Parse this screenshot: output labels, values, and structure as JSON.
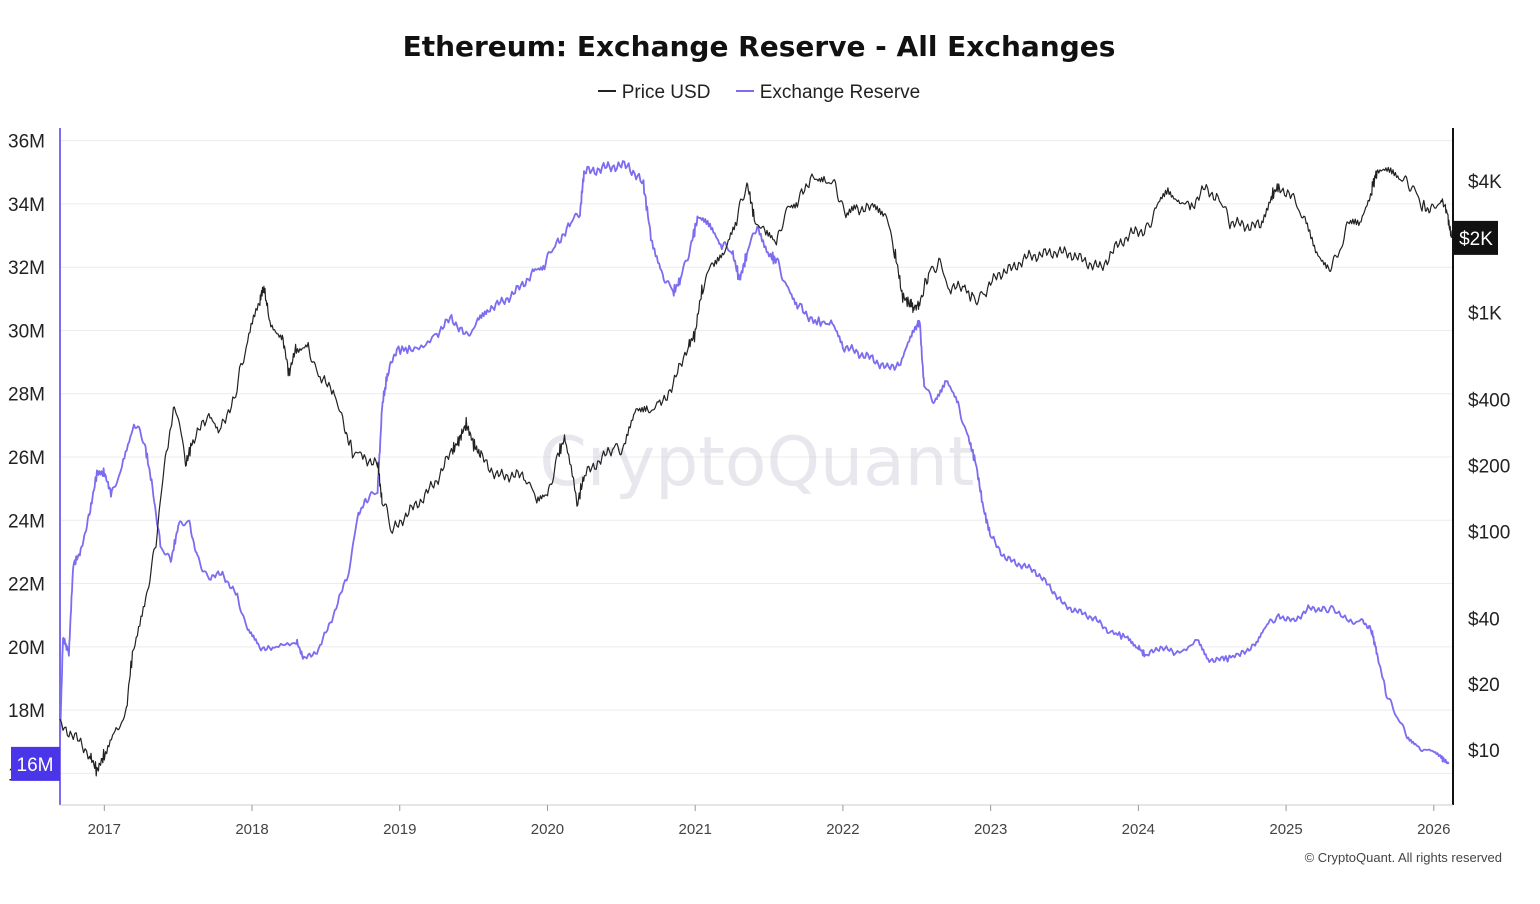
{
  "chart_data": {
    "type": "line",
    "title": "Ethereum: Exchange Reserve - All Exchanges",
    "legend": {
      "position": "top-center",
      "items": [
        {
          "label": "Price USD",
          "color": "#222222"
        },
        {
          "label": "Exchange Reserve",
          "color": "#7b6cf0"
        }
      ]
    },
    "x_ticks": [
      "2017",
      "2018",
      "2019",
      "2020",
      "2021",
      "2022",
      "2023",
      "2024",
      "2025",
      "2026"
    ],
    "x_range": [
      2016.7,
      2026.13
    ],
    "y_left": {
      "ticks": [
        "16M",
        "18M",
        "20M",
        "22M",
        "24M",
        "26M",
        "28M",
        "30M",
        "32M",
        "34M",
        "36M"
      ],
      "range": [
        15000000,
        36400000
      ]
    },
    "y_right": {
      "scale": "log",
      "ticks": [
        {
          "label": "$10",
          "value": 10
        },
        {
          "label": "$20",
          "value": 20
        },
        {
          "label": "$40",
          "value": 40
        },
        {
          "label": "$100",
          "value": 100
        },
        {
          "label": "$200",
          "value": 200
        },
        {
          "label": "$400",
          "value": 400
        },
        {
          "label": "$1K",
          "value": 1000
        },
        {
          "label": "$4K",
          "value": 4000
        }
      ],
      "range": [
        5.6,
        7000
      ]
    },
    "current_badges": {
      "left": "16M",
      "right": "$2K"
    },
    "grid": "horizontal",
    "watermark": "CryptoQuant",
    "series": [
      {
        "name": "Exchange Reserve",
        "axis": "left",
        "color": "#7b6cf0",
        "points": [
          [
            2016.7,
            17000000
          ],
          [
            2016.72,
            20300000
          ],
          [
            2016.76,
            19800000
          ],
          [
            2016.79,
            22600000
          ],
          [
            2016.84,
            23000000
          ],
          [
            2016.9,
            24200000
          ],
          [
            2016.95,
            25500000
          ],
          [
            2017.0,
            25500000
          ],
          [
            2017.05,
            24800000
          ],
          [
            2017.12,
            25700000
          ],
          [
            2017.2,
            27100000
          ],
          [
            2017.27,
            26500000
          ],
          [
            2017.32,
            25200000
          ],
          [
            2017.38,
            23200000
          ],
          [
            2017.45,
            22700000
          ],
          [
            2017.5,
            23800000
          ],
          [
            2017.57,
            24000000
          ],
          [
            2017.63,
            22800000
          ],
          [
            2017.7,
            22200000
          ],
          [
            2017.8,
            22300000
          ],
          [
            2017.9,
            21600000
          ],
          [
            2017.97,
            20500000
          ],
          [
            2018.05,
            20000000
          ],
          [
            2018.15,
            19900000
          ],
          [
            2018.3,
            20200000
          ],
          [
            2018.35,
            19600000
          ],
          [
            2018.45,
            19900000
          ],
          [
            2018.55,
            21000000
          ],
          [
            2018.65,
            22300000
          ],
          [
            2018.72,
            24200000
          ],
          [
            2018.78,
            24700000
          ],
          [
            2018.85,
            24900000
          ],
          [
            2018.88,
            27600000
          ],
          [
            2018.92,
            28700000
          ],
          [
            2018.98,
            29400000
          ],
          [
            2019.1,
            29400000
          ],
          [
            2019.25,
            29900000
          ],
          [
            2019.35,
            30400000
          ],
          [
            2019.45,
            29800000
          ],
          [
            2019.52,
            30200000
          ],
          [
            2019.6,
            30700000
          ],
          [
            2019.7,
            30900000
          ],
          [
            2019.8,
            31300000
          ],
          [
            2019.9,
            31800000
          ],
          [
            2019.98,
            32100000
          ],
          [
            2020.05,
            32700000
          ],
          [
            2020.15,
            33300000
          ],
          [
            2020.22,
            33800000
          ],
          [
            2020.25,
            35000000
          ],
          [
            2020.35,
            35100000
          ],
          [
            2020.45,
            35200000
          ],
          [
            2020.55,
            35200000
          ],
          [
            2020.65,
            34600000
          ],
          [
            2020.7,
            33000000
          ],
          [
            2020.78,
            31800000
          ],
          [
            2020.85,
            31200000
          ],
          [
            2020.9,
            31600000
          ],
          [
            2020.97,
            32700000
          ],
          [
            2021.02,
            33600000
          ],
          [
            2021.1,
            33200000
          ],
          [
            2021.18,
            32700000
          ],
          [
            2021.25,
            32500000
          ],
          [
            2021.3,
            31600000
          ],
          [
            2021.35,
            32400000
          ],
          [
            2021.42,
            33400000
          ],
          [
            2021.5,
            32400000
          ],
          [
            2021.55,
            32200000
          ],
          [
            2021.62,
            31400000
          ],
          [
            2021.7,
            30800000
          ],
          [
            2021.8,
            30300000
          ],
          [
            2021.92,
            30200000
          ],
          [
            2022.0,
            29500000
          ],
          [
            2022.1,
            29300000
          ],
          [
            2022.2,
            29100000
          ],
          [
            2022.3,
            28800000
          ],
          [
            2022.4,
            29000000
          ],
          [
            2022.48,
            30000000
          ],
          [
            2022.52,
            30300000
          ],
          [
            2022.55,
            28200000
          ],
          [
            2022.62,
            27800000
          ],
          [
            2022.7,
            28500000
          ],
          [
            2022.78,
            27600000
          ],
          [
            2022.85,
            26600000
          ],
          [
            2022.9,
            25800000
          ],
          [
            2022.95,
            24400000
          ],
          [
            2023.0,
            23500000
          ],
          [
            2023.1,
            22800000
          ],
          [
            2023.2,
            22600000
          ],
          [
            2023.3,
            22400000
          ],
          [
            2023.4,
            21900000
          ],
          [
            2023.5,
            21300000
          ],
          [
            2023.6,
            21100000
          ],
          [
            2023.7,
            20900000
          ],
          [
            2023.8,
            20500000
          ],
          [
            2023.92,
            20300000
          ],
          [
            2024.0,
            20000000
          ],
          [
            2024.05,
            19700000
          ],
          [
            2024.15,
            20000000
          ],
          [
            2024.25,
            19800000
          ],
          [
            2024.4,
            20200000
          ],
          [
            2024.48,
            19600000
          ],
          [
            2024.58,
            19600000
          ],
          [
            2024.7,
            19800000
          ],
          [
            2024.8,
            20100000
          ],
          [
            2024.88,
            20700000
          ],
          [
            2024.95,
            21000000
          ],
          [
            2025.05,
            20800000
          ],
          [
            2025.15,
            21200000
          ],
          [
            2025.25,
            21200000
          ],
          [
            2025.32,
            21200000
          ],
          [
            2025.45,
            20800000
          ],
          [
            2025.52,
            20800000
          ],
          [
            2025.58,
            20500000
          ],
          [
            2025.62,
            19700000
          ],
          [
            2025.68,
            18500000
          ],
          [
            2025.75,
            17800000
          ],
          [
            2025.82,
            17200000
          ],
          [
            2025.9,
            16800000
          ],
          [
            2025.97,
            16700000
          ],
          [
            2026.05,
            16500000
          ],
          [
            2026.1,
            16300000
          ]
        ]
      },
      {
        "name": "Price USD",
        "axis": "right",
        "color": "#222222",
        "points": [
          [
            2016.7,
            13
          ],
          [
            2016.8,
            11.5
          ],
          [
            2016.9,
            9.5
          ],
          [
            2016.95,
            8
          ],
          [
            2017.0,
            9.5
          ],
          [
            2017.08,
            12
          ],
          [
            2017.15,
            15
          ],
          [
            2017.2,
            30
          ],
          [
            2017.28,
            48
          ],
          [
            2017.35,
            85
          ],
          [
            2017.42,
            220
          ],
          [
            2017.48,
            380
          ],
          [
            2017.55,
            200
          ],
          [
            2017.6,
            260
          ],
          [
            2017.7,
            330
          ],
          [
            2017.78,
            290
          ],
          [
            2017.88,
            400
          ],
          [
            2017.97,
            720
          ],
          [
            2018.05,
            1100
          ],
          [
            2018.08,
            1300
          ],
          [
            2018.12,
            900
          ],
          [
            2018.2,
            800
          ],
          [
            2018.25,
            520
          ],
          [
            2018.3,
            700
          ],
          [
            2018.38,
            700
          ],
          [
            2018.45,
            500
          ],
          [
            2018.55,
            450
          ],
          [
            2018.62,
            300
          ],
          [
            2018.68,
            230
          ],
          [
            2018.75,
            220
          ],
          [
            2018.85,
            200
          ],
          [
            2018.88,
            140
          ],
          [
            2018.95,
            100
          ],
          [
            2019.05,
            120
          ],
          [
            2019.15,
            140
          ],
          [
            2019.25,
            170
          ],
          [
            2019.35,
            230
          ],
          [
            2019.4,
            260
          ],
          [
            2019.45,
            310
          ],
          [
            2019.5,
            250
          ],
          [
            2019.55,
            220
          ],
          [
            2019.65,
            180
          ],
          [
            2019.75,
            180
          ],
          [
            2019.85,
            180
          ],
          [
            2019.92,
            140
          ],
          [
            2020.0,
            140
          ],
          [
            2020.07,
            220
          ],
          [
            2020.12,
            270
          ],
          [
            2020.2,
            130
          ],
          [
            2020.25,
            180
          ],
          [
            2020.35,
            210
          ],
          [
            2020.45,
            240
          ],
          [
            2020.52,
            240
          ],
          [
            2020.6,
            380
          ],
          [
            2020.68,
            360
          ],
          [
            2020.75,
            370
          ],
          [
            2020.85,
            460
          ],
          [
            2020.95,
            700
          ],
          [
            2021.0,
            800
          ],
          [
            2021.05,
            1300
          ],
          [
            2021.12,
            1700
          ],
          [
            2021.2,
            1800
          ],
          [
            2021.28,
            2600
          ],
          [
            2021.35,
            3900
          ],
          [
            2021.4,
            2700
          ],
          [
            2021.47,
            2300
          ],
          [
            2021.55,
            2000
          ],
          [
            2021.62,
            3000
          ],
          [
            2021.7,
            3300
          ],
          [
            2021.8,
            4300
          ],
          [
            2021.88,
            4100
          ],
          [
            2021.95,
            3800
          ],
          [
            2022.02,
            2700
          ],
          [
            2022.1,
            3000
          ],
          [
            2022.2,
            3000
          ],
          [
            2022.28,
            2900
          ],
          [
            2022.35,
            1900
          ],
          [
            2022.4,
            1200
          ],
          [
            2022.45,
            1100
          ],
          [
            2022.48,
            1050
          ],
          [
            2022.52,
            1100
          ],
          [
            2022.58,
            1500
          ],
          [
            2022.65,
            1700
          ],
          [
            2022.72,
            1300
          ],
          [
            2022.82,
            1300
          ],
          [
            2022.88,
            1150
          ],
          [
            2022.95,
            1200
          ],
          [
            2023.05,
            1500
          ],
          [
            2023.15,
            1600
          ],
          [
            2023.25,
            1800
          ],
          [
            2023.35,
            1850
          ],
          [
            2023.45,
            1900
          ],
          [
            2023.55,
            1850
          ],
          [
            2023.65,
            1700
          ],
          [
            2023.75,
            1600
          ],
          [
            2023.85,
            2000
          ],
          [
            2023.95,
            2300
          ],
          [
            2024.05,
            2400
          ],
          [
            2024.12,
            2900
          ],
          [
            2024.2,
            3700
          ],
          [
            2024.28,
            3300
          ],
          [
            2024.35,
            3000
          ],
          [
            2024.45,
            3700
          ],
          [
            2024.55,
            3300
          ],
          [
            2024.62,
            2600
          ],
          [
            2024.72,
            2500
          ],
          [
            2024.82,
            2500
          ],
          [
            2024.9,
            3400
          ],
          [
            2024.95,
            3800
          ],
          [
            2025.05,
            3300
          ],
          [
            2025.12,
            2700
          ],
          [
            2025.2,
            2000
          ],
          [
            2025.28,
            1600
          ],
          [
            2025.35,
            1800
          ],
          [
            2025.42,
            2500
          ],
          [
            2025.5,
            2500
          ],
          [
            2025.58,
            3700
          ],
          [
            2025.62,
            4500
          ],
          [
            2025.7,
            4300
          ],
          [
            2025.78,
            4100
          ],
          [
            2025.85,
            3800
          ],
          [
            2025.92,
            3100
          ],
          [
            2025.98,
            2900
          ],
          [
            2026.05,
            3300
          ],
          [
            2026.09,
            2900
          ],
          [
            2026.12,
            2200
          ]
        ]
      }
    ]
  }
}
